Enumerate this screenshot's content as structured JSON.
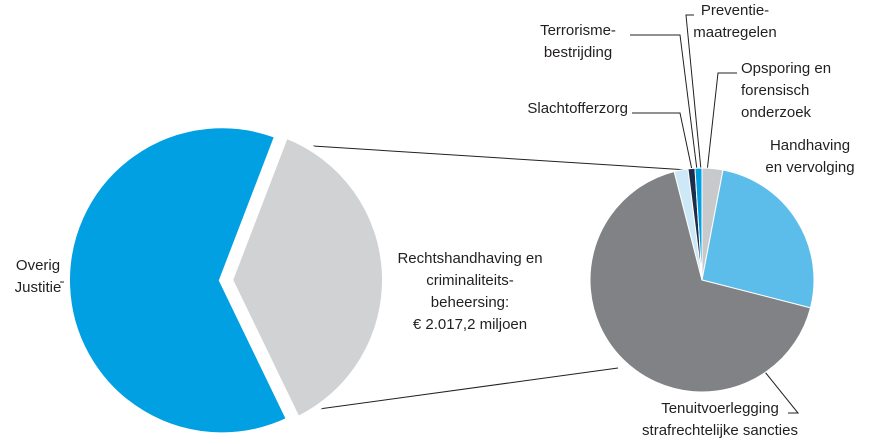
{
  "chart_data": [
    {
      "type": "pie",
      "categories": [
        "Rechtshandhaving en\ncriminaliteits-\nbeheersing:\n€ 2.017,2 miljoen",
        "Overig\nJustitie"
      ],
      "values": [
        37,
        63
      ],
      "colors": [
        "#d1d2d4",
        "#00a0e2"
      ]
    },
    {
      "type": "pie",
      "categories": [
        "Opsporing en\nforensisch\nonderzoek",
        "Handhaving\nen vervolging",
        "Tenuitvoerlegging\nstrafrechtelijke sancties",
        "Slachtofferzorg",
        "Terrorisme-\nbestrijding",
        "Preventie-\nmaatregelen"
      ],
      "values": [
        3,
        26,
        67,
        2,
        1,
        1
      ],
      "colors": [
        "#c8c9cb",
        "#5cbcea",
        "#808285",
        "#cde8f6",
        "#1c2f4a",
        "#00a0e2"
      ]
    }
  ]
}
